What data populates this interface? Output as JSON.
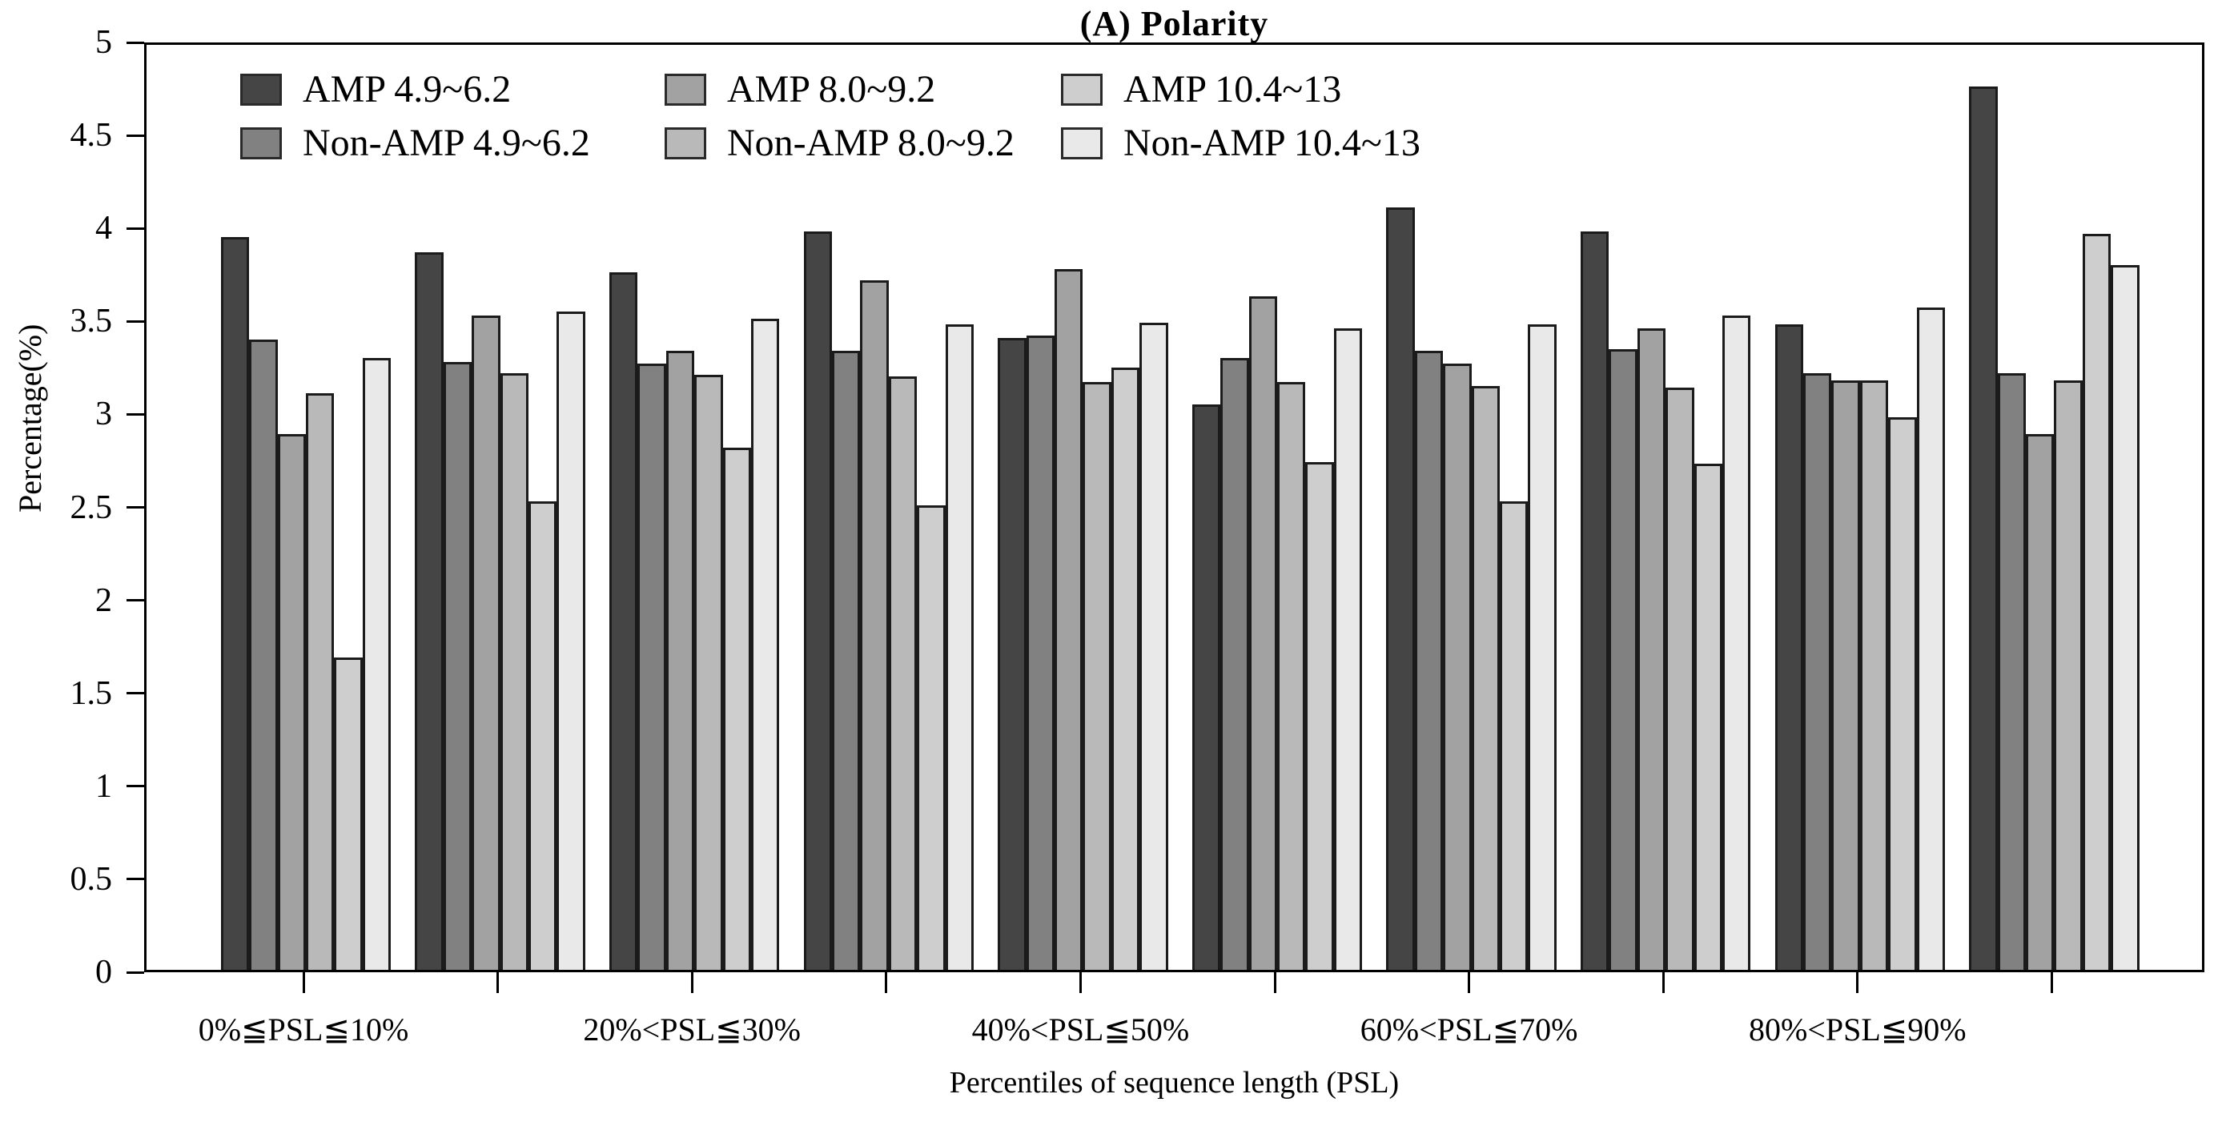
{
  "chart_data": {
    "type": "bar",
    "title": "(A) Polarity",
    "xlabel": "Percentiles of sequence length (PSL)",
    "ylabel": "Percentage(%)",
    "ylim": [
      0,
      5
    ],
    "yticks": [
      0,
      0.5,
      1,
      1.5,
      2,
      2.5,
      3,
      3.5,
      4,
      4.5,
      5
    ],
    "grid": false,
    "legend_position": "top-left-inside",
    "legend_rows": 2,
    "legend_cols": 3,
    "categories": [
      "0%≦PSL≦10%",
      "",
      "20%<PSL≦30%",
      "",
      "40%<PSL≦50%",
      "",
      "60%<PSL≦70%",
      "",
      "80%<PSL≦90%",
      ""
    ],
    "series": [
      {
        "name": "AMP 4.9~6.2",
        "color": "#454545",
        "values": [
          3.94,
          3.86,
          3.75,
          3.97,
          3.4,
          3.04,
          4.1,
          3.97,
          3.47,
          4.75
        ]
      },
      {
        "name": "Non-AMP 4.9~6.2",
        "color": "#818181",
        "values": [
          3.39,
          3.27,
          3.26,
          3.33,
          3.41,
          3.29,
          3.33,
          3.34,
          3.21,
          3.21
        ]
      },
      {
        "name": "AMP 8.0~9.2",
        "color": "#a2a2a2",
        "values": [
          2.88,
          3.52,
          3.33,
          3.71,
          3.77,
          3.62,
          3.26,
          3.45,
          3.17,
          2.88
        ]
      },
      {
        "name": "Non-AMP 8.0~9.2",
        "color": "#b9b9b9",
        "values": [
          3.1,
          3.21,
          3.2,
          3.19,
          3.16,
          3.16,
          3.14,
          3.13,
          3.17,
          3.17
        ]
      },
      {
        "name": "AMP 10.4~13",
        "color": "#cecece",
        "values": [
          1.68,
          2.52,
          2.81,
          2.5,
          3.24,
          2.73,
          2.52,
          2.72,
          2.97,
          3.96
        ]
      },
      {
        "name": "Non-AMP 10.4~13",
        "color": "#e9e9e9",
        "values": [
          3.29,
          3.54,
          3.5,
          3.47,
          3.48,
          3.45,
          3.47,
          3.52,
          3.56,
          3.79
        ]
      }
    ]
  }
}
